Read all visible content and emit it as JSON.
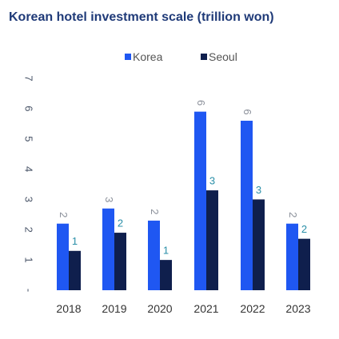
{
  "chart_data": {
    "type": "bar",
    "title": "Korean hotel investment scale (trillion won)",
    "categories": [
      "2018",
      "2019",
      "2020",
      "2021",
      "2022",
      "2023"
    ],
    "series": [
      {
        "name": "Korea",
        "color": "#1f57f2",
        "values": [
          2.2,
          2.7,
          2.3,
          5.9,
          5.6,
          2.2
        ],
        "labels": [
          "2",
          "3",
          "2",
          "6",
          "6",
          "2"
        ],
        "label_color": "#8a8f99"
      },
      {
        "name": "Seoul",
        "color": "#0f1f4d",
        "values": [
          1.3,
          1.9,
          1.0,
          3.3,
          3.0,
          1.7
        ],
        "labels": [
          "1",
          "2",
          "1",
          "3",
          "3",
          "2"
        ],
        "label_color": "#2a8fa8"
      }
    ],
    "y_ticks": [
      "-",
      "1",
      "2",
      "3",
      "4",
      "5",
      "6",
      "7"
    ],
    "ylim": [
      0,
      7
    ],
    "grid": false,
    "legend_position": "top-center"
  }
}
